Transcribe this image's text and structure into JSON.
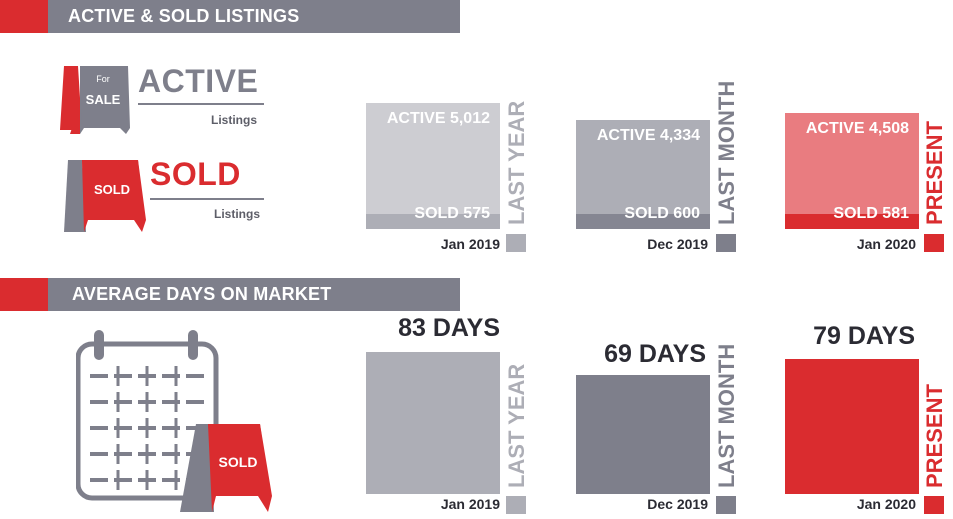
{
  "sections": {
    "listings_title": "ACTIVE & SOLD LISTINGS",
    "dom_title": "AVERAGE DAYS ON MARKET"
  },
  "legend": {
    "active": {
      "word": "ACTIVE",
      "sub": "Listings",
      "sign_top": "For",
      "sign_main": "SALE"
    },
    "sold": {
      "word": "SOLD",
      "sub": "Listings",
      "sign_main": "SOLD"
    }
  },
  "calendar_sign": "SOLD",
  "colors": {
    "red": "#da2c2f",
    "gray": "#7e7f8b",
    "light_gray": "#cdcdd2",
    "active_last_year": "#cdcdd2",
    "sold_last_year": "#adaeb6",
    "active_last_month": "#adaeb6",
    "sold_last_month": "#858692",
    "active_present": "#e97c80",
    "sold_present": "#da2c2f"
  },
  "chart_data": [
    {
      "type": "bar",
      "title": "ACTIVE & SOLD LISTINGS",
      "categories": [
        "Jan 2019",
        "Dec 2019",
        "Jan 2020"
      ],
      "period_labels": [
        "LAST YEAR",
        "LAST MONTH",
        "PRESENT"
      ],
      "series": [
        {
          "name": "ACTIVE",
          "values": [
            5012,
            4334,
            4508
          ],
          "labels": [
            "ACTIVE 5,012",
            "ACTIVE 4,334",
            "ACTIVE 4,508"
          ]
        },
        {
          "name": "SOLD",
          "values": [
            575,
            600,
            581
          ],
          "labels": [
            "SOLD 575",
            "SOLD 600",
            "SOLD 581"
          ]
        }
      ]
    },
    {
      "type": "bar",
      "title": "AVERAGE DAYS ON MARKET",
      "categories": [
        "Jan 2019",
        "Dec 2019",
        "Jan 2020"
      ],
      "period_labels": [
        "LAST YEAR",
        "LAST MONTH",
        "PRESENT"
      ],
      "values": [
        83,
        69,
        79
      ],
      "labels": [
        "83 DAYS",
        "69 DAYS",
        "79 DAYS"
      ]
    }
  ]
}
